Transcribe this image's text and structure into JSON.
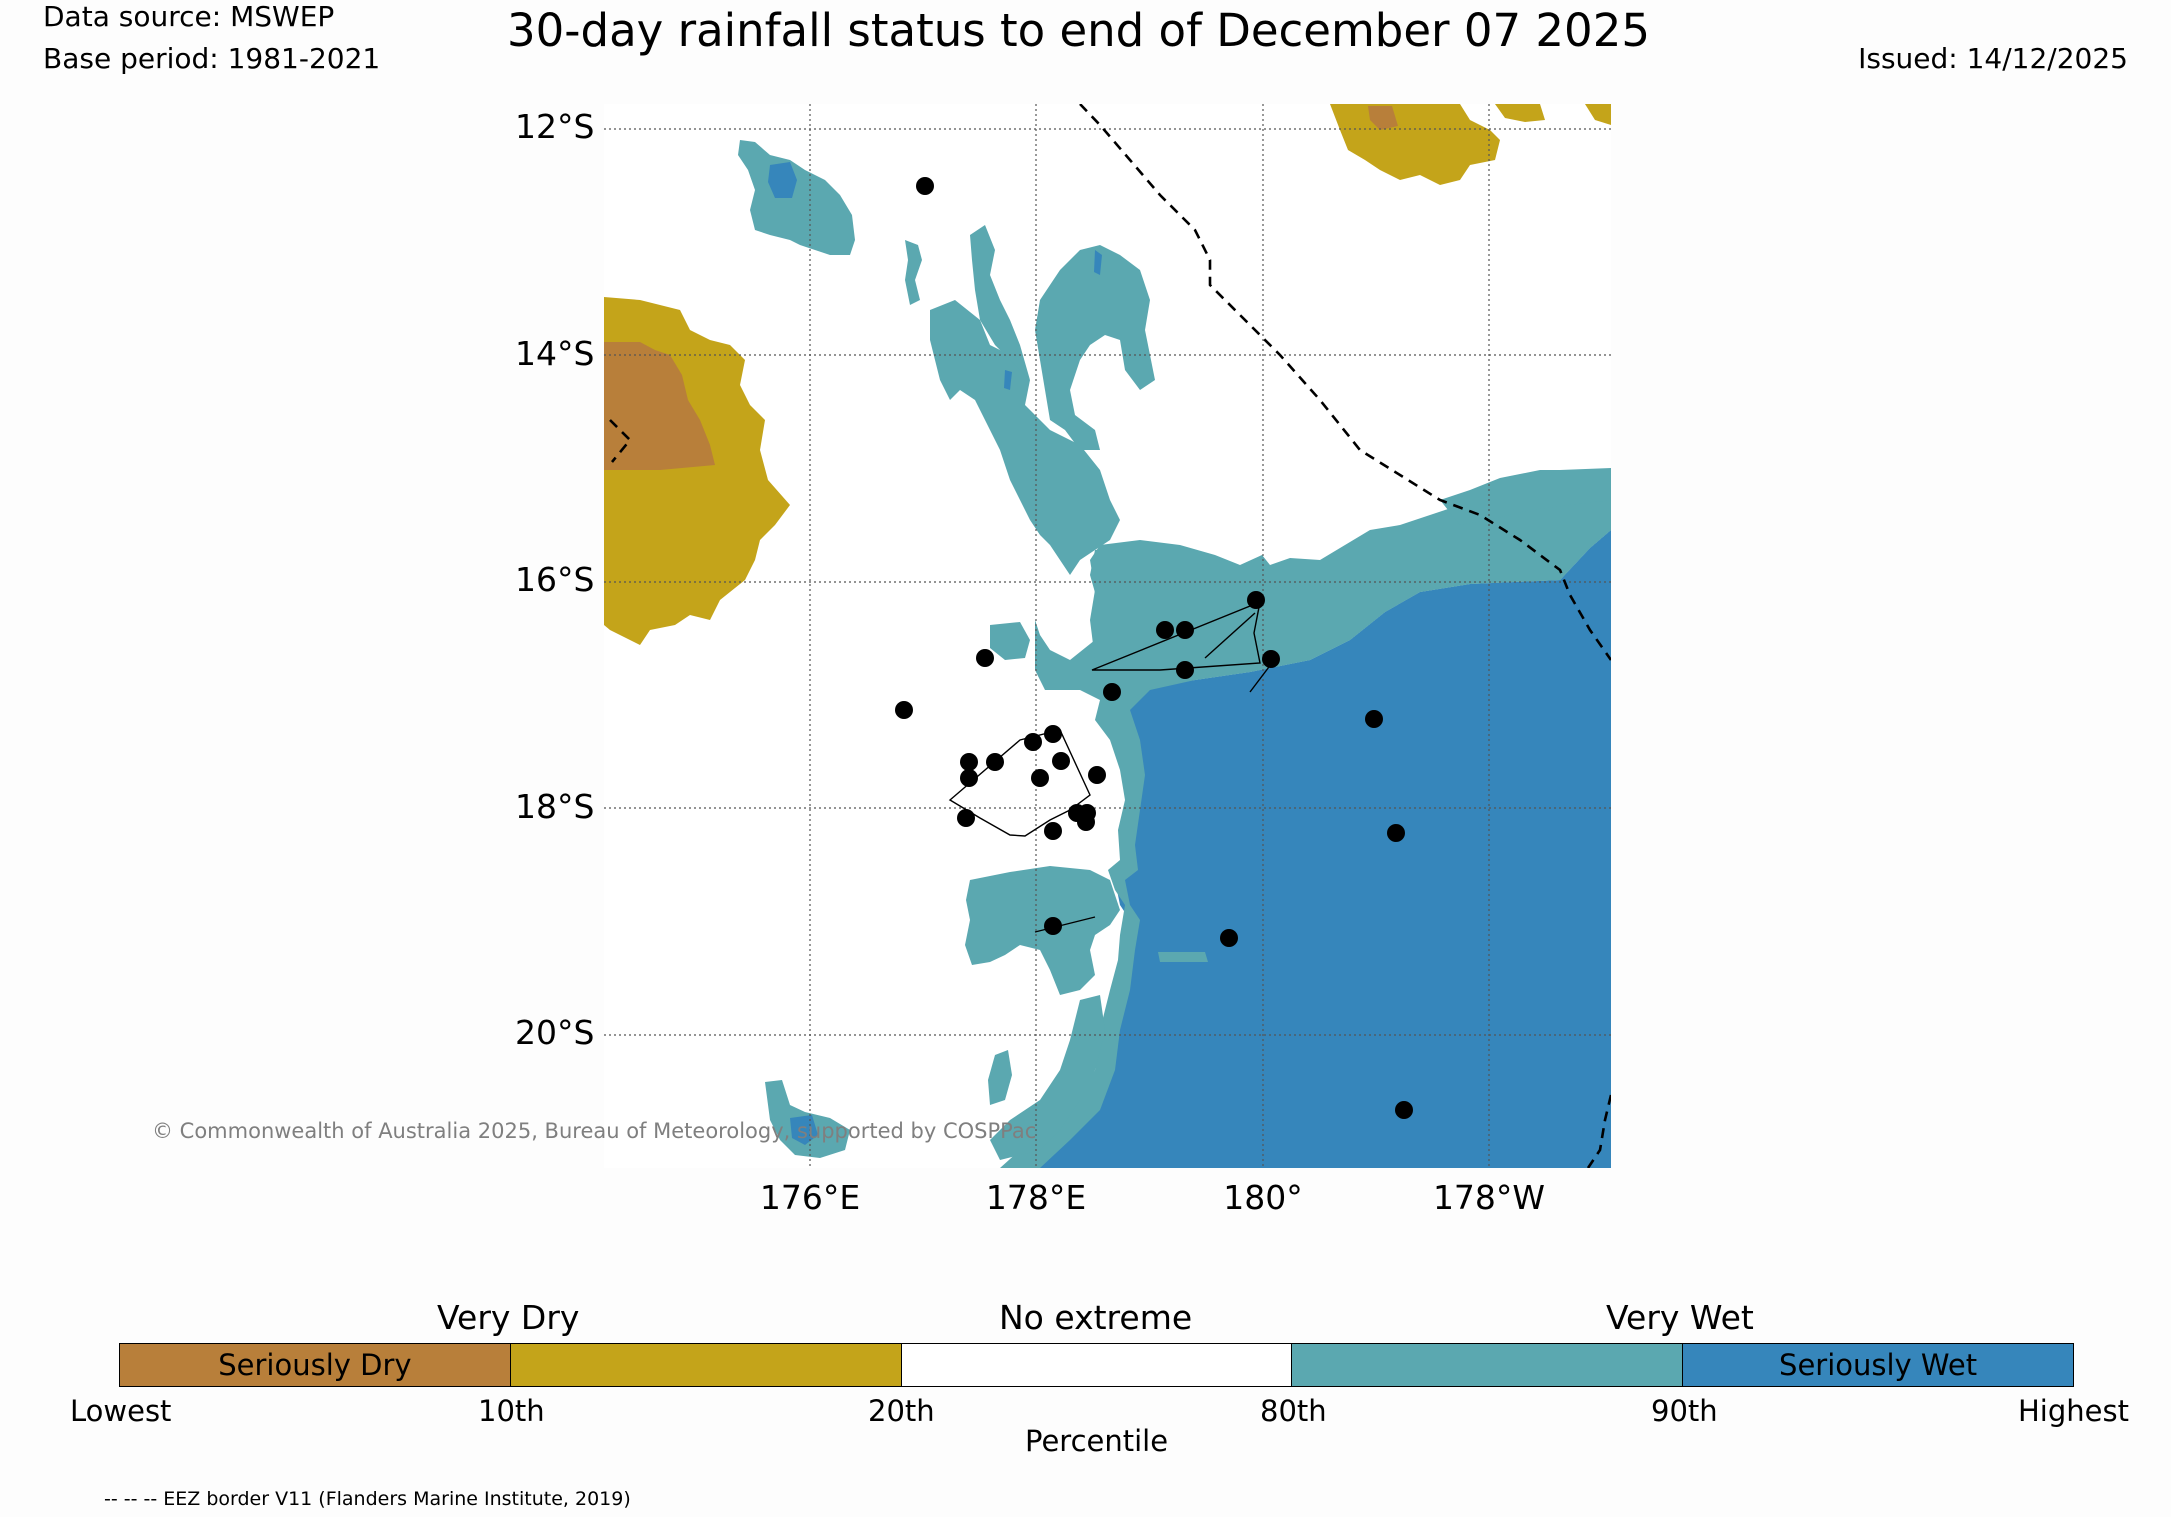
{
  "header": {
    "data_source": "Data source: MSWEP",
    "base_period": "Base period: 1981-2021",
    "title": "30-day rainfall status to end of December 07 2025",
    "issued": "Issued: 14/12/2025"
  },
  "map": {
    "lat_labels": [
      "12°S",
      "14°S",
      "16°S",
      "18°S",
      "20°S"
    ],
    "lon_labels": [
      "176°E",
      "178°E",
      "180°",
      "178°W"
    ],
    "copyright": "© Commonwealth of Australia 2025, Bureau of Meteorology, supported by COSPPac",
    "colors": {
      "seriously_dry": "#b87f3a",
      "very_dry": "#c4a41a",
      "no_extreme": "#ffffff",
      "very_wet": "#5ba8b0",
      "seriously_wet": "#3686bb"
    }
  },
  "legend": {
    "groups": [
      "Very Dry",
      "No extreme",
      "Very Wet"
    ],
    "segments": [
      {
        "label": "Seriously Dry",
        "color": "#b87f3a"
      },
      {
        "label": "",
        "color": "#c4a41a"
      },
      {
        "label": "",
        "color": "#ffffff"
      },
      {
        "label": "",
        "color": "#5ba8b0"
      },
      {
        "label": "Seriously Wet",
        "color": "#3686bb"
      }
    ],
    "percentiles": [
      "Lowest",
      "10th",
      "20th",
      "80th",
      "90th",
      "Highest"
    ],
    "axis_label": "Percentile"
  },
  "footnote": "-- -- -- EEZ border V11 (Flanders Marine Institute, 2019)"
}
